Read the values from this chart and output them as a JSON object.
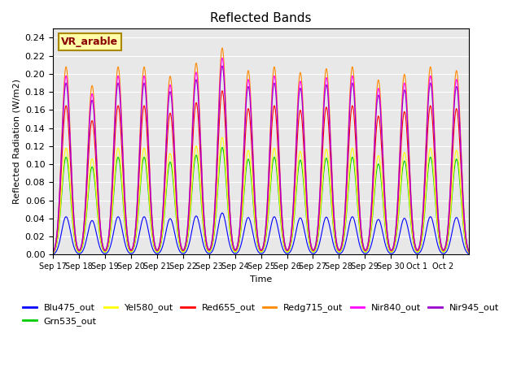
{
  "title": "Reflected Bands",
  "xlabel": "Time",
  "ylabel": "Reflected Radiation (W/m2)",
  "annotation": "VR_arable",
  "ylim": [
    0,
    0.25
  ],
  "yticks": [
    0.0,
    0.02,
    0.04,
    0.06,
    0.08,
    0.1,
    0.12,
    0.14,
    0.16,
    0.18,
    0.2,
    0.22,
    0.24
  ],
  "x_labels": [
    "Sep 17",
    "Sep 18",
    "Sep 19",
    "Sep 20",
    "Sep 21",
    "Sep 22",
    "Sep 23",
    "Sep 24",
    "Sep 25",
    "Sep 26",
    "Sep 27",
    "Sep 28",
    "Sep 29",
    "Sep 30",
    "Oct 1",
    "Oct 2"
  ],
  "series": [
    {
      "name": "Blu475_out",
      "color": "#0000ff",
      "peak": 0.042
    },
    {
      "name": "Grn535_out",
      "color": "#00cc00",
      "peak": 0.108
    },
    {
      "name": "Yel580_out",
      "color": "#ffff00",
      "peak": 0.118
    },
    {
      "name": "Red655_out",
      "color": "#ff0000",
      "peak": 0.165
    },
    {
      "name": "Redg715_out",
      "color": "#ff8800",
      "peak": 0.208
    },
    {
      "name": "Nir840_out",
      "color": "#ff00ff",
      "peak": 0.198
    },
    {
      "name": "Nir945_out",
      "color": "#9900cc",
      "peak": 0.19
    }
  ],
  "n_days": 16,
  "pts_per_day": 48,
  "bg_color": "#e8e8e8",
  "day_modifiers": [
    1.0,
    0.9,
    1.0,
    1.0,
    0.95,
    1.02,
    1.1,
    0.98,
    1.0,
    0.97,
    0.99,
    1.0,
    0.93,
    0.96,
    1.0,
    0.98
  ]
}
